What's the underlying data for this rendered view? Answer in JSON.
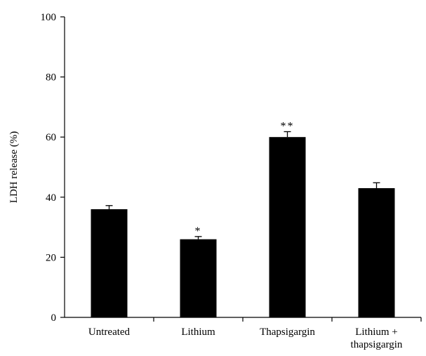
{
  "chart_data": {
    "type": "bar",
    "title": "",
    "xlabel": "",
    "ylabel": "LDH release (%)",
    "ylim": [
      0,
      100
    ],
    "yticks": [
      0,
      20,
      40,
      60,
      80,
      100
    ],
    "categories": [
      {
        "lines": [
          "Untreated"
        ]
      },
      {
        "lines": [
          "Lithium"
        ]
      },
      {
        "lines": [
          "Thapsigargin"
        ]
      },
      {
        "lines": [
          "Lithium +",
          "thapsigargin"
        ]
      }
    ],
    "values": [
      36,
      26,
      60,
      43
    ],
    "errors": [
      1.2,
      0.9,
      1.8,
      1.8
    ],
    "significance": [
      "",
      "*",
      "**",
      ""
    ],
    "bar_color": "#000000",
    "grid": false,
    "legend": "none"
  }
}
